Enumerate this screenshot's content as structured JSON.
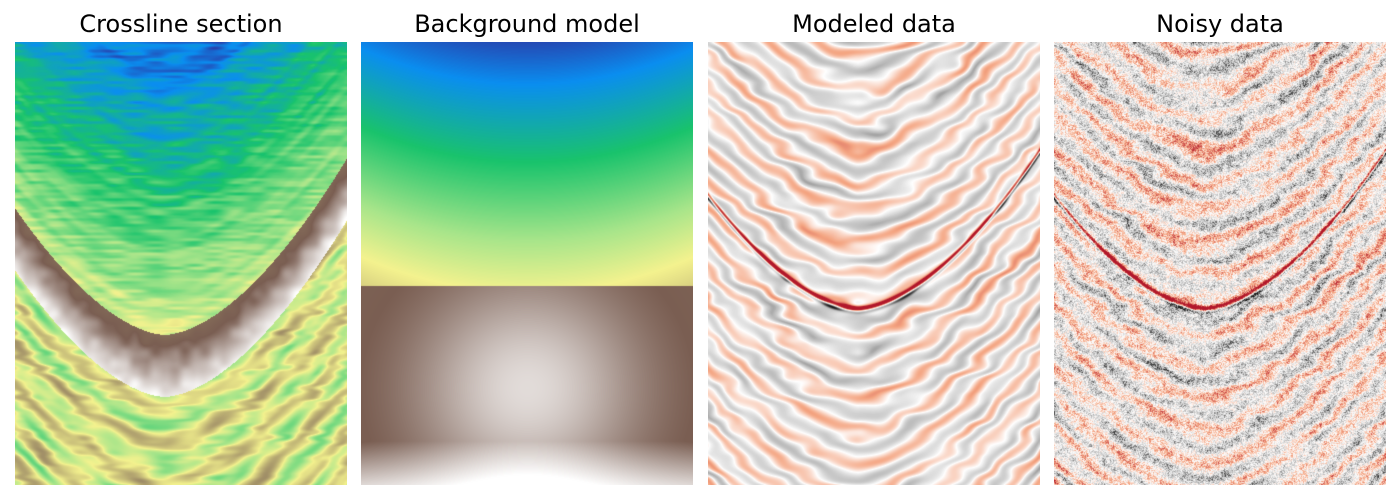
{
  "chart_data": [
    {
      "type": "heatmap",
      "title": "Crossline section",
      "colormap": "terrain",
      "colors": {
        "top": "#2b3aa6",
        "mid": "#19c36c",
        "band": "#f4f28e",
        "low": "#7a5e52",
        "bottom": "#e8e8e8"
      },
      "axes_visible": false
    },
    {
      "type": "heatmap",
      "title": "Background model",
      "colormap": "terrain",
      "colors": {
        "top": "#2a3898",
        "mid": "#1bc86c",
        "band": "#fbf69a",
        "low": "#7a5e55",
        "bottom": "#ffffff"
      },
      "axes_visible": false
    },
    {
      "type": "heatmap",
      "title": "Modeled data",
      "colormap": "RdGy",
      "colors": {
        "negative": "#b2182b",
        "zero": "#ffffff",
        "positive": "#1a1a1a"
      },
      "axes_visible": false
    },
    {
      "type": "heatmap",
      "title": "Noisy data",
      "colormap": "RdGy",
      "colors": {
        "negative": "#b2182b",
        "zero": "#ffffff",
        "positive": "#1a1a1a"
      },
      "axes_visible": false
    }
  ]
}
